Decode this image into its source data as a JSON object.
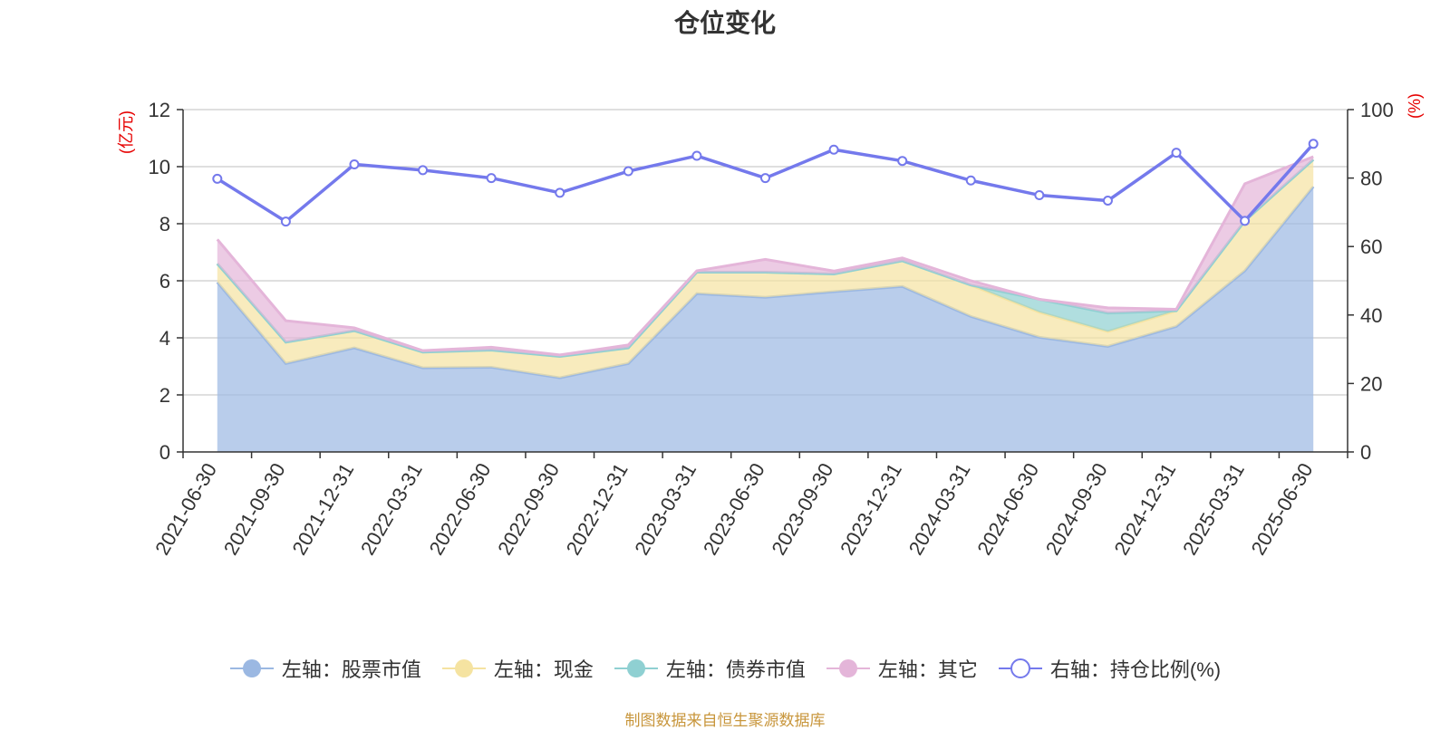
{
  "chart_data": {
    "type": "area",
    "title": "仓位变化",
    "left_axis_label": "(亿元)",
    "right_axis_label": "(%)",
    "x": [
      "2021-06-30",
      "2021-09-30",
      "2021-12-31",
      "2022-03-31",
      "2022-06-30",
      "2022-09-30",
      "2022-12-31",
      "2023-03-31",
      "2023-06-30",
      "2023-09-30",
      "2023-12-31",
      "2024-03-31",
      "2024-06-30",
      "2024-09-30",
      "2024-12-31",
      "2025-03-31",
      "2025-06-30"
    ],
    "left_ylim": [
      0,
      12
    ],
    "left_yticks": [
      0,
      2,
      4,
      6,
      8,
      10,
      12
    ],
    "right_ylim": [
      0,
      100
    ],
    "right_yticks": [
      0,
      20,
      40,
      60,
      80,
      100
    ],
    "grid": true,
    "legend_position": "bottom",
    "stacked": true,
    "series": [
      {
        "name": "左轴：股票市值",
        "axis": "left",
        "color": "#9bb8e2",
        "values": [
          5.95,
          3.1,
          3.65,
          2.95,
          2.97,
          2.6,
          3.1,
          5.55,
          5.42,
          5.62,
          5.8,
          4.75,
          4.02,
          3.7,
          4.4,
          6.35,
          9.3
        ]
      },
      {
        "name": "左轴：现金",
        "axis": "left",
        "color": "#f5e3a1",
        "values": [
          0.65,
          0.75,
          0.6,
          0.55,
          0.6,
          0.75,
          0.55,
          0.75,
          0.88,
          0.62,
          0.9,
          1.1,
          0.88,
          0.52,
          0.55,
          1.75,
          0.95
        ]
      },
      {
        "name": "左轴：债券市值",
        "axis": "left",
        "color": "#8fd0d2",
        "values": [
          0,
          0,
          0,
          0,
          0,
          0,
          0,
          0,
          0,
          0,
          0,
          0,
          0.45,
          0.65,
          0,
          0,
          0
        ]
      },
      {
        "name": "左轴：其它",
        "axis": "left",
        "color": "#e4b5d9",
        "values": [
          0.85,
          0.75,
          0.1,
          0.05,
          0.1,
          0.05,
          0.1,
          0.05,
          0.45,
          0.1,
          0.1,
          0.15,
          0.0,
          0.18,
          0.05,
          1.3,
          0.1
        ]
      },
      {
        "name": "右轴：持仓比例(%)",
        "axis": "right",
        "type": "line",
        "color": "#7479ec",
        "values": [
          79.8,
          67.3,
          84.0,
          82.3,
          80.0,
          75.7,
          82.0,
          86.5,
          80.0,
          88.3,
          85.0,
          79.3,
          75.0,
          73.4,
          87.4,
          67.5,
          90.0
        ]
      }
    ]
  },
  "footer": {
    "source": "制图数据来自恒生聚源数据库"
  }
}
